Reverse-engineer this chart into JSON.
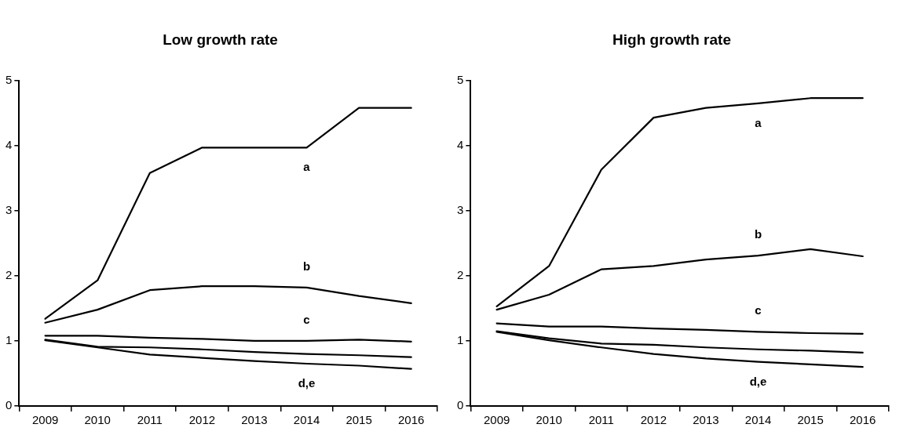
{
  "chart_data": [
    {
      "type": "line",
      "title": "Low growth rate",
      "categories": [
        "2009",
        "2010",
        "2011",
        "2012",
        "2013",
        "2014",
        "2015",
        "2016"
      ],
      "ylim": [
        0,
        5
      ],
      "yticks": [
        0,
        1,
        2,
        3,
        4,
        5
      ],
      "grid": false,
      "legend": false,
      "series": [
        {
          "name": "a",
          "color": "#000000",
          "values": [
            1.34,
            1.93,
            3.58,
            3.97,
            3.97,
            3.97,
            4.58,
            4.58
          ]
        },
        {
          "name": "b",
          "color": "#000000",
          "values": [
            1.28,
            1.48,
            1.78,
            1.84,
            1.84,
            1.82,
            1.69,
            1.58
          ]
        },
        {
          "name": "c",
          "color": "#000000",
          "values": [
            1.08,
            1.08,
            1.05,
            1.03,
            1.0,
            1.0,
            1.02,
            0.99
          ]
        },
        {
          "color": "#000000",
          "values": [
            1.02,
            0.91,
            0.9,
            0.87,
            0.83,
            0.8,
            0.78,
            0.75
          ]
        },
        {
          "color": "#000000",
          "values": [
            1.01,
            0.9,
            0.79,
            0.74,
            0.69,
            0.65,
            0.62,
            0.57
          ]
        }
      ],
      "annotations": [
        "d,e"
      ]
    },
    {
      "type": "line",
      "title": "High growth rate",
      "categories": [
        "2009",
        "2010",
        "2011",
        "2012",
        "2013",
        "2014",
        "2015",
        "2016"
      ],
      "ylim": [
        0,
        5
      ],
      "yticks": [
        0,
        1,
        2,
        3,
        4,
        5
      ],
      "grid": false,
      "legend": false,
      "series": [
        {
          "name": "a",
          "color": "#000000",
          "values": [
            1.53,
            2.15,
            3.63,
            4.43,
            4.58,
            4.65,
            4.73,
            4.73
          ]
        },
        {
          "name": "b",
          "color": "#000000",
          "values": [
            1.48,
            1.71,
            2.1,
            2.15,
            2.25,
            2.31,
            2.41,
            2.3
          ]
        },
        {
          "name": "c",
          "color": "#000000",
          "values": [
            1.27,
            1.22,
            1.22,
            1.19,
            1.17,
            1.14,
            1.12,
            1.11
          ]
        },
        {
          "color": "#000000",
          "values": [
            1.15,
            1.04,
            0.96,
            0.94,
            0.9,
            0.87,
            0.85,
            0.82
          ]
        },
        {
          "color": "#000000",
          "values": [
            1.14,
            1.01,
            0.9,
            0.8,
            0.73,
            0.68,
            0.64,
            0.6
          ]
        }
      ],
      "annotations": [
        "d,e"
      ]
    }
  ]
}
